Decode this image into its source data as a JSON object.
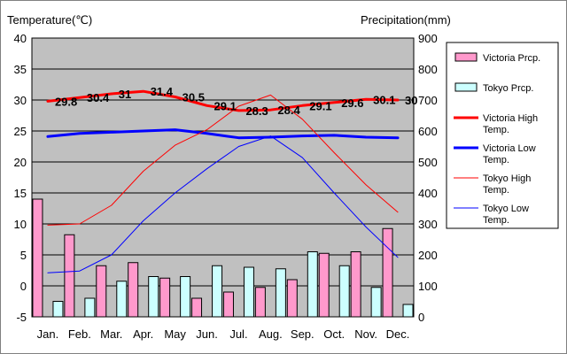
{
  "chart_data": {
    "type": "bar+line",
    "categories": [
      "Jan.",
      "Feb.",
      "Mar.",
      "Apr.",
      "May",
      "Jun.",
      "Jul.",
      "Aug.",
      "Sep.",
      "Oct.",
      "Nov.",
      "Dec."
    ],
    "y_left": {
      "label": "Temperature(℃)",
      "min": -5,
      "max": 40,
      "ticks": [
        -5,
        0,
        5,
        10,
        15,
        20,
        25,
        30,
        35,
        40
      ]
    },
    "y_right": {
      "label": "Precipitation(mm)",
      "min": 0,
      "max": 900,
      "ticks": [
        0,
        100,
        200,
        300,
        400,
        500,
        600,
        700,
        800,
        900
      ]
    },
    "grid": true,
    "legend_position": "right",
    "bar_series": [
      {
        "name": "Victoria Prcp.",
        "color": "#ff99cc",
        "values": [
          380,
          265,
          165,
          175,
          125,
          60,
          80,
          95,
          120,
          205,
          210,
          285
        ]
      },
      {
        "name": "Tokyo Prcp.",
        "color": "#ccffff",
        "values": [
          50,
          60,
          115,
          130,
          130,
          165,
          160,
          155,
          210,
          165,
          95,
          40
        ]
      }
    ],
    "line_series": [
      {
        "name": "Victoria High Temp.",
        "color": "#ff0000",
        "width": 3,
        "values": [
          29.8,
          30.4,
          31,
          31.4,
          30.5,
          29.1,
          28.3,
          28.4,
          29.1,
          29.6,
          30.1,
          30
        ],
        "labels": [
          "29.8",
          "30.4",
          "31",
          "31.4",
          "30.5",
          "29.1",
          "28.3",
          "28.4",
          "29.1",
          "29.6",
          "30.1",
          "30"
        ]
      },
      {
        "name": "Victoria Low Temp.",
        "color": "#0000ff",
        "width": 3,
        "values": [
          24.1,
          24.6,
          24.8,
          25.0,
          25.2,
          24.6,
          23.9,
          24.0,
          24.2,
          24.3,
          24.0,
          23.9
        ]
      },
      {
        "name": "Tokyo High Temp.",
        "color": "#ff0000",
        "width": 1,
        "values": [
          9.8,
          10.0,
          13.0,
          18.5,
          22.7,
          25.2,
          29.0,
          30.8,
          26.9,
          21.5,
          16.3,
          11.9
        ]
      },
      {
        "name": "Tokyo Low Temp.",
        "color": "#0000ff",
        "width": 1,
        "values": [
          2.1,
          2.4,
          5.0,
          10.5,
          15.0,
          18.9,
          22.5,
          24.2,
          20.7,
          15.0,
          9.5,
          4.6
        ]
      }
    ],
    "legend": [
      {
        "label": "Victoria Prcp.",
        "type": "box",
        "color": "#ff99cc"
      },
      {
        "label": "Tokyo Prcp.",
        "type": "box",
        "color": "#ccffff"
      },
      {
        "label": "Victoria High Temp.",
        "type": "line",
        "color": "#ff0000",
        "width": 3
      },
      {
        "label": "Victoria Low Temp.",
        "type": "line",
        "color": "#0000ff",
        "width": 3
      },
      {
        "label": "Tokyo High Temp.",
        "type": "line",
        "color": "#ff0000",
        "width": 1
      },
      {
        "label": "Tokyo Low Temp.",
        "type": "line",
        "color": "#0000ff",
        "width": 1
      }
    ],
    "colors": {
      "plot_background": "#c0c0c0",
      "gridline": "#000000"
    }
  }
}
